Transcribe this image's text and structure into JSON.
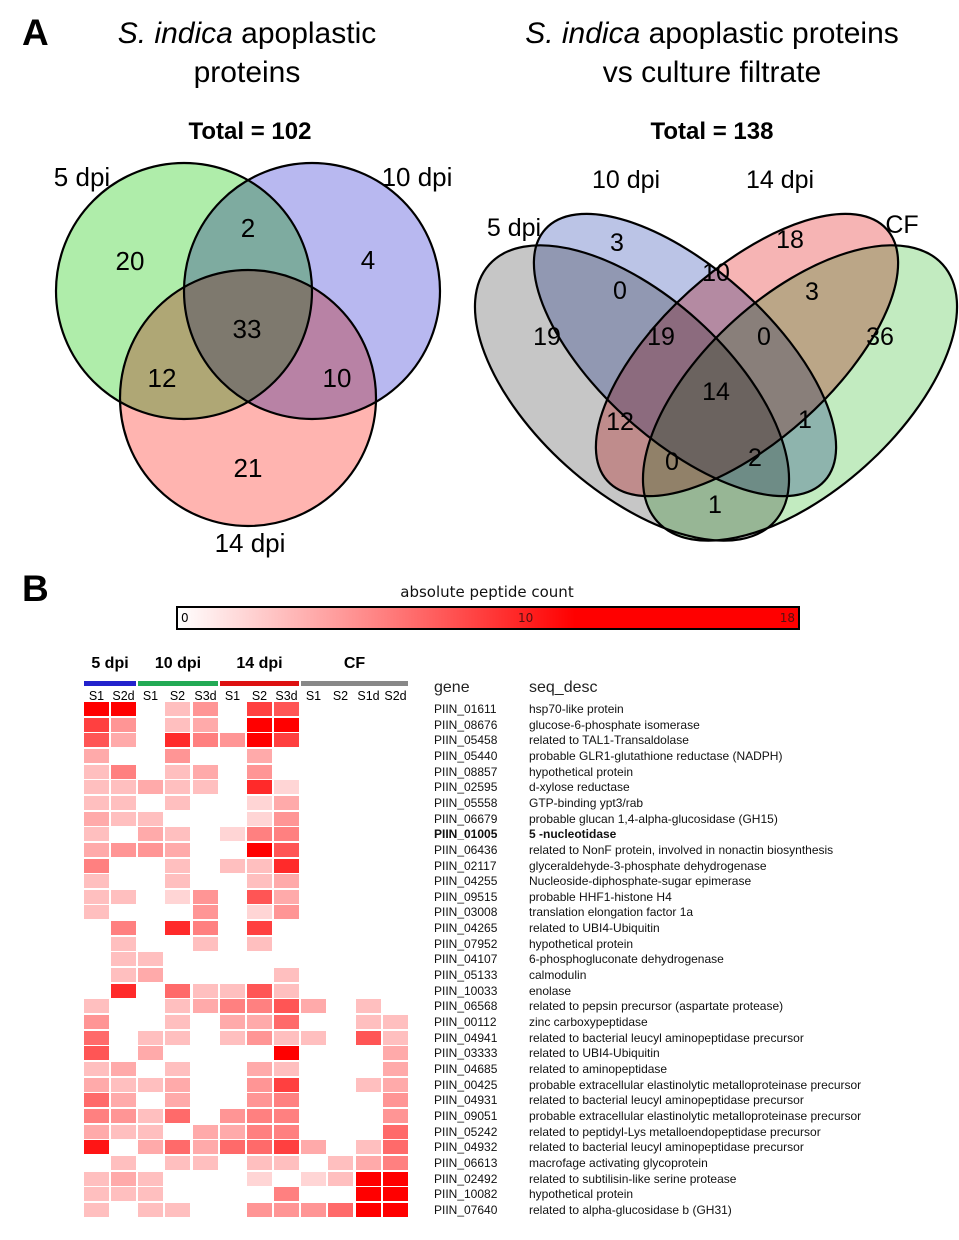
{
  "panel_a": {
    "label": "A",
    "venn3": {
      "title_italic": "S. indica",
      "title_rest": " apoplastic",
      "title_line2": "proteins",
      "total": "Total = 102",
      "set_labels": {
        "s5": "5 dpi",
        "s10": "10 dpi",
        "s14": "14 dpi"
      },
      "colors": {
        "s5": "#AFEDAA",
        "s10": "#B8B8F0",
        "s14": "#FFB4B0"
      }
    },
    "venn4": {
      "title_italic": "S. indica",
      "title_rest": " apoplastic proteins",
      "title_line2": "vs culture filtrate",
      "total": "Total = 138",
      "set_labels": {
        "s5": "5 dpi",
        "s10": "10 dpi",
        "s14": "14 dpi",
        "cf": "CF"
      },
      "colors": {
        "s5": "#C6C6C6",
        "s10": "#BBC4E6",
        "s14": "#F6B4B4",
        "cf": "#C2EBC0"
      }
    }
  },
  "panel_b": {
    "label": "B",
    "colorbar": {
      "title": "absolute peptide count",
      "min": "0",
      "mid": "10",
      "max": "18"
    },
    "table_headers": {
      "gene": "gene",
      "desc": "seq_desc"
    }
  },
  "chart_data": [
    {
      "type": "venn",
      "title": "S. indica apoplastic proteins",
      "total": 102,
      "sets": [
        "5 dpi",
        "10 dpi",
        "14 dpi"
      ],
      "regions": {
        "s5": 20,
        "s10": 4,
        "s14": 21,
        "s5_s10": 2,
        "s5_s14": 12,
        "s10_s14": 10,
        "s5_s10_s14": 33
      }
    },
    {
      "type": "venn",
      "title": "S. indica apoplastic proteins vs culture filtrate",
      "total": 138,
      "sets": [
        "5 dpi",
        "10 dpi",
        "14 dpi",
        "CF"
      ],
      "regions": {
        "s5": 19,
        "s10": 3,
        "s14": 18,
        "cf": 36,
        "s5_s10": 0,
        "s10_s14": 10,
        "s14_cf": 3,
        "s5_s10_s14": 19,
        "s10_s14_cf": 0,
        "s5_s10_s14_cf": 14,
        "s5_s14": 12,
        "s10_cf": 1,
        "s5_s14_cf": 0,
        "s5_s10_cf": 2,
        "s5_cf": 1
      }
    },
    {
      "type": "heatmap",
      "title": "absolute peptide count",
      "scale": {
        "min": 0,
        "mid_tick": 10,
        "max": 18,
        "color_low": "#FFFFFF",
        "color_high": "#FF0000",
        "saturation_value": 12
      },
      "column_groups": [
        {
          "label": "5 dpi",
          "color": "#2222CC",
          "cols": 2
        },
        {
          "label": "10 dpi",
          "color": "#22AA55",
          "cols": 3
        },
        {
          "label": "14 dpi",
          "color": "#DD1111",
          "cols": 3
        },
        {
          "label": "CF",
          "color": "#888888",
          "cols": 4
        }
      ],
      "columns": [
        "S1",
        "S2d",
        "S1",
        "S2",
        "S3d",
        "S1",
        "S2",
        "S3d",
        "S1",
        "S2",
        "S1d",
        "S2d"
      ],
      "rows": [
        {
          "gene": "PIIN_01611",
          "desc": "hsp70-like protein",
          "bold": false,
          "values": [
            16,
            14,
            0,
            3,
            5,
            0,
            9,
            8,
            0,
            0,
            0,
            0
          ]
        },
        {
          "gene": "PIIN_08676",
          "desc": "glucose-6-phosphate isomerase",
          "bold": false,
          "values": [
            9,
            5,
            0,
            3,
            4,
            0,
            12,
            17,
            0,
            0,
            0,
            0
          ]
        },
        {
          "gene": "PIIN_05458",
          "desc": "related to TAL1-Transaldolase",
          "bold": false,
          "values": [
            8,
            4,
            0,
            10,
            6,
            5,
            12,
            9,
            0,
            0,
            0,
            0
          ]
        },
        {
          "gene": "PIIN_05440",
          "desc": "probable GLR1-glutathione reductase (NADPH)",
          "bold": false,
          "values": [
            4,
            0,
            0,
            5,
            0,
            0,
            4,
            0,
            0,
            0,
            0,
            0
          ]
        },
        {
          "gene": "PIIN_08857",
          "desc": "hypothetical protein",
          "bold": false,
          "values": [
            3,
            6,
            0,
            3,
            4,
            0,
            5,
            0,
            0,
            0,
            0,
            0
          ]
        },
        {
          "gene": "PIIN_02595",
          "desc": "d-xylose reductase",
          "bold": false,
          "values": [
            3,
            3,
            4,
            3,
            3,
            0,
            10,
            2,
            0,
            0,
            0,
            0
          ]
        },
        {
          "gene": "PIIN_05558",
          "desc": "GTP-binding ypt3/rab",
          "bold": false,
          "values": [
            3,
            3,
            0,
            3,
            0,
            0,
            2,
            4,
            0,
            0,
            0,
            0
          ]
        },
        {
          "gene": "PIIN_06679",
          "desc": "probable glucan 1,4-alpha-glucosidase (GH15)",
          "bold": false,
          "values": [
            4,
            3,
            3,
            0,
            0,
            0,
            2,
            5,
            0,
            0,
            0,
            0
          ]
        },
        {
          "gene": "PIIN_01005",
          "desc": "5 -nucleotidase",
          "bold": true,
          "values": [
            3,
            0,
            4,
            3,
            0,
            2,
            6,
            6,
            0,
            0,
            0,
            0
          ]
        },
        {
          "gene": "PIIN_06436",
          "desc": "related to NonF protein, involved in nonactin biosynthesis",
          "bold": false,
          "values": [
            4,
            5,
            5,
            4,
            0,
            0,
            12,
            8,
            0,
            0,
            0,
            0
          ]
        },
        {
          "gene": "PIIN_02117",
          "desc": "glyceraldehyde-3-phosphate dehydrogenase",
          "bold": false,
          "values": [
            6,
            0,
            0,
            3,
            0,
            3,
            3,
            10,
            0,
            0,
            0,
            0
          ]
        },
        {
          "gene": "PIIN_04255",
          "desc": "Nucleoside-diphosphate-sugar epimerase",
          "bold": false,
          "values": [
            3,
            0,
            0,
            3,
            0,
            0,
            3,
            4,
            0,
            0,
            0,
            0
          ]
        },
        {
          "gene": "PIIN_09515",
          "desc": "probable HHF1-histone H4",
          "bold": false,
          "values": [
            3,
            3,
            0,
            2,
            5,
            0,
            8,
            4,
            0,
            0,
            0,
            0
          ]
        },
        {
          "gene": "PIIN_03008",
          "desc": "translation elongation factor 1a",
          "bold": false,
          "values": [
            3,
            0,
            0,
            0,
            5,
            0,
            2,
            5,
            0,
            0,
            0,
            0
          ]
        },
        {
          "gene": "PIIN_04265",
          "desc": "related to UBI4-Ubiquitin",
          "bold": false,
          "values": [
            0,
            6,
            0,
            10,
            6,
            0,
            9,
            0,
            0,
            0,
            0,
            0
          ]
        },
        {
          "gene": "PIIN_07952",
          "desc": "hypothetical protein",
          "bold": false,
          "values": [
            0,
            3,
            0,
            0,
            3,
            0,
            3,
            0,
            0,
            0,
            0,
            0
          ]
        },
        {
          "gene": "PIIN_04107",
          "desc": "6-phosphogluconate dehydrogenase",
          "bold": false,
          "values": [
            0,
            3,
            3,
            0,
            0,
            0,
            0,
            0,
            0,
            0,
            0,
            0
          ]
        },
        {
          "gene": "PIIN_05133",
          "desc": "calmodulin",
          "bold": false,
          "values": [
            0,
            3,
            4,
            0,
            0,
            0,
            0,
            3,
            0,
            0,
            0,
            0
          ]
        },
        {
          "gene": "PIIN_10033",
          "desc": "enolase",
          "bold": false,
          "values": [
            0,
            10,
            0,
            7,
            3,
            3,
            8,
            3,
            0,
            0,
            0,
            0
          ]
        },
        {
          "gene": "PIIN_06568",
          "desc": "related to pepsin precursor (aspartate protease)",
          "bold": false,
          "values": [
            3,
            0,
            0,
            3,
            4,
            6,
            6,
            8,
            4,
            0,
            3,
            0
          ]
        },
        {
          "gene": "PIIN_00112",
          "desc": "zinc carboxypeptidase",
          "bold": false,
          "values": [
            5,
            0,
            0,
            3,
            0,
            4,
            4,
            7,
            0,
            0,
            3,
            3
          ]
        },
        {
          "gene": "PIIN_04941",
          "desc": "related to bacterial leucyl aminopeptidase precursor",
          "bold": false,
          "values": [
            7,
            0,
            3,
            3,
            0,
            3,
            5,
            3,
            3,
            0,
            8,
            3
          ]
        },
        {
          "gene": "PIIN_03333",
          "desc": "related to UBI4-Ubiquitin",
          "bold": false,
          "values": [
            8,
            0,
            4,
            0,
            0,
            0,
            0,
            15,
            0,
            0,
            0,
            4
          ]
        },
        {
          "gene": "PIIN_04685",
          "desc": "related to aminopeptidase",
          "bold": false,
          "values": [
            3,
            4,
            0,
            3,
            0,
            0,
            4,
            3,
            0,
            0,
            0,
            4
          ]
        },
        {
          "gene": "PIIN_00425",
          "desc": "probable extracellular elastinolytic metalloproteinase precursor",
          "bold": false,
          "values": [
            4,
            3,
            3,
            4,
            0,
            0,
            5,
            9,
            0,
            0,
            3,
            4
          ]
        },
        {
          "gene": "PIIN_04931",
          "desc": "related to bacterial leucyl aminopeptidase precursor",
          "bold": false,
          "values": [
            7,
            4,
            0,
            4,
            0,
            0,
            5,
            6,
            0,
            0,
            0,
            5
          ]
        },
        {
          "gene": "PIIN_09051",
          "desc": "probable extracellular elastinolytic metalloproteinase precursor",
          "bold": false,
          "values": [
            6,
            5,
            3,
            7,
            0,
            5,
            6,
            6,
            0,
            0,
            0,
            5
          ]
        },
        {
          "gene": "PIIN_05242",
          "desc": "related to peptidyl-Lys metalloendopeptidase precursor",
          "bold": false,
          "values": [
            4,
            3,
            3,
            0,
            4,
            4,
            6,
            6,
            0,
            0,
            0,
            7
          ]
        },
        {
          "gene": "PIIN_04932",
          "desc": "related to bacterial leucyl aminopeptidase precursor",
          "bold": false,
          "values": [
            11,
            0,
            4,
            7,
            4,
            7,
            7,
            9,
            4,
            0,
            3,
            7
          ]
        },
        {
          "gene": "PIIN_06613",
          "desc": "macrofage activating glycoprotein",
          "bold": false,
          "values": [
            0,
            3,
            0,
            3,
            3,
            0,
            3,
            3,
            0,
            3,
            4,
            6
          ]
        },
        {
          "gene": "PIIN_02492",
          "desc": "related to subtilisin-like serine protease",
          "bold": false,
          "values": [
            3,
            4,
            3,
            0,
            0,
            0,
            2,
            0,
            2,
            3,
            14,
            17
          ]
        },
        {
          "gene": "PIIN_10082",
          "desc": "hypothetical protein",
          "bold": false,
          "values": [
            3,
            3,
            3,
            0,
            0,
            0,
            0,
            6,
            0,
            0,
            15,
            17
          ]
        },
        {
          "gene": "PIIN_07640",
          "desc": "related to alpha-glucosidase b (GH31)",
          "bold": false,
          "values": [
            3,
            0,
            3,
            3,
            0,
            0,
            5,
            5,
            5,
            7,
            16,
            17
          ]
        }
      ]
    }
  ]
}
